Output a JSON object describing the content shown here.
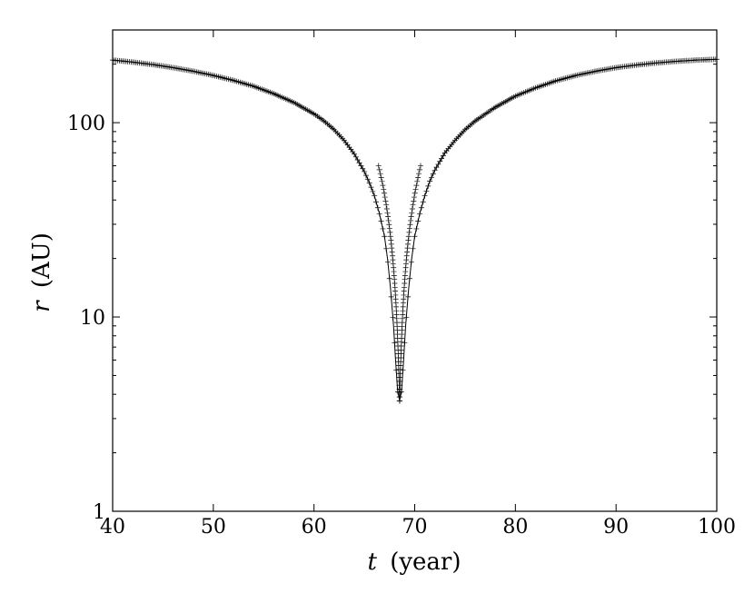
{
  "chart_data": {
    "type": "line",
    "title": "",
    "xlabel": {
      "var": "t",
      "unit": "(year)"
    },
    "ylabel": {
      "var": "r",
      "unit": "(AU)"
    },
    "xlim": [
      40,
      100
    ],
    "ylim": [
      1,
      300
    ],
    "yscale": "log",
    "grid": false,
    "legend": "none",
    "x_ticks": [
      "40",
      "50",
      "60",
      "70",
      "80",
      "90",
      "100"
    ],
    "y_ticks": [
      "1",
      "10",
      "100"
    ],
    "line_color": "#000000",
    "marker": "+",
    "series": [
      {
        "x": [
          40,
          42,
          44,
          46,
          48,
          50,
          52,
          54,
          56,
          58,
          60,
          61,
          62,
          63,
          64,
          65,
          65.5,
          66,
          66.5,
          67,
          67.3,
          67.6,
          67.9,
          68.1,
          68.3,
          68.5,
          68.7,
          68.9,
          69.1,
          69.4,
          69.7,
          70,
          70.5,
          71,
          71.5,
          72,
          73,
          74,
          75,
          76,
          78,
          80,
          82,
          84,
          86,
          88,
          90,
          92,
          94,
          96,
          98,
          100
        ],
        "y": [
          210,
          205,
          199,
          192,
          184,
          175,
          165,
          154,
          141,
          127,
          111,
          102,
          92,
          81,
          69,
          56,
          49,
          42,
          34,
          26,
          20,
          14,
          9,
          6,
          4.2,
          3.7,
          4.2,
          6,
          9,
          14,
          20,
          26,
          34,
          42,
          50,
          57,
          70,
          81,
          92,
          102,
          120,
          137,
          151,
          164,
          175,
          184,
          192,
          198,
          203,
          207,
          210,
          212
        ]
      }
    ]
  }
}
